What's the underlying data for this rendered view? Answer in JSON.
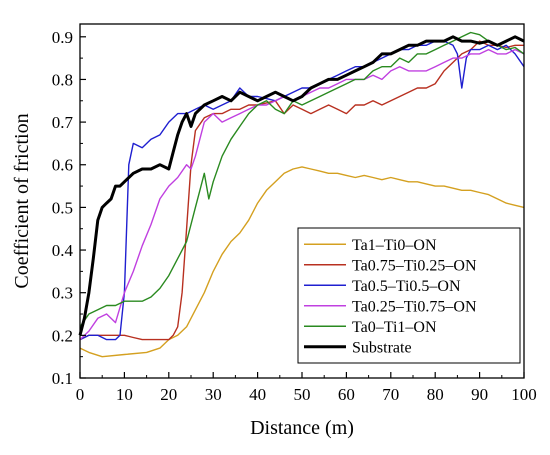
{
  "chart_data": {
    "type": "line",
    "title": "",
    "xlabel": "Distance (m)",
    "ylabel": "Coefficient of friction",
    "xlim": [
      0,
      100
    ],
    "ylim": [
      0.1,
      0.93
    ],
    "xticks": [
      0,
      10,
      20,
      30,
      40,
      50,
      60,
      70,
      80,
      90,
      100
    ],
    "yticks": [
      0.1,
      0.2,
      0.3,
      0.4,
      0.5,
      0.6,
      0.7,
      0.8,
      0.9
    ],
    "grid": false,
    "legend_position": "bottom-right",
    "series": [
      {
        "name": "Ta1–Ti0–ON",
        "color": "#d4a020",
        "width": 1.4,
        "x": [
          0,
          2,
          5,
          10,
          15,
          18,
          20,
          22,
          24,
          26,
          28,
          30,
          32,
          34,
          36,
          38,
          40,
          42,
          44,
          46,
          48,
          50,
          52,
          54,
          56,
          58,
          60,
          62,
          64,
          66,
          68,
          70,
          72,
          74,
          76,
          78,
          80,
          82,
          84,
          86,
          88,
          90,
          92,
          94,
          96,
          98,
          100
        ],
        "y": [
          0.17,
          0.16,
          0.15,
          0.155,
          0.16,
          0.17,
          0.19,
          0.2,
          0.22,
          0.26,
          0.3,
          0.35,
          0.39,
          0.42,
          0.44,
          0.47,
          0.51,
          0.54,
          0.56,
          0.58,
          0.59,
          0.595,
          0.59,
          0.585,
          0.58,
          0.58,
          0.575,
          0.57,
          0.575,
          0.57,
          0.565,
          0.57,
          0.565,
          0.56,
          0.56,
          0.555,
          0.55,
          0.55,
          0.545,
          0.54,
          0.54,
          0.535,
          0.53,
          0.52,
          0.51,
          0.505,
          0.5
        ]
      },
      {
        "name": "Ta0.75–Ti0.25–ON",
        "color": "#b83020",
        "width": 1.4,
        "x": [
          0,
          2,
          4,
          6,
          8,
          10,
          12,
          14,
          16,
          18,
          20,
          21,
          22,
          23,
          24,
          25,
          26,
          28,
          30,
          32,
          34,
          36,
          38,
          40,
          42,
          44,
          46,
          48,
          50,
          52,
          54,
          56,
          58,
          60,
          62,
          64,
          66,
          68,
          70,
          72,
          74,
          76,
          78,
          80,
          82,
          84,
          86,
          88,
          90,
          92,
          94,
          96,
          98,
          100
        ],
        "y": [
          0.19,
          0.2,
          0.2,
          0.2,
          0.2,
          0.2,
          0.195,
          0.19,
          0.19,
          0.19,
          0.19,
          0.2,
          0.22,
          0.3,
          0.45,
          0.6,
          0.68,
          0.71,
          0.72,
          0.72,
          0.73,
          0.73,
          0.74,
          0.74,
          0.745,
          0.75,
          0.72,
          0.74,
          0.73,
          0.72,
          0.73,
          0.74,
          0.73,
          0.72,
          0.74,
          0.74,
          0.75,
          0.74,
          0.75,
          0.76,
          0.77,
          0.78,
          0.78,
          0.79,
          0.82,
          0.84,
          0.86,
          0.87,
          0.89,
          0.88,
          0.88,
          0.875,
          0.88,
          0.88
        ]
      },
      {
        "name": "Ta0.5–Ti0.5–ON",
        "color": "#1f1fd0",
        "width": 1.4,
        "x": [
          0,
          2,
          4,
          6,
          8,
          9,
          10,
          11,
          12,
          14,
          16,
          18,
          20,
          22,
          24,
          26,
          28,
          30,
          32,
          34,
          36,
          38,
          40,
          42,
          44,
          46,
          48,
          50,
          52,
          54,
          56,
          58,
          60,
          62,
          64,
          66,
          68,
          70,
          72,
          74,
          76,
          78,
          80,
          82,
          84,
          85,
          86,
          87,
          88,
          90,
          92,
          94,
          96,
          98,
          100
        ],
        "y": [
          0.19,
          0.2,
          0.2,
          0.19,
          0.19,
          0.2,
          0.3,
          0.6,
          0.65,
          0.64,
          0.66,
          0.67,
          0.7,
          0.72,
          0.72,
          0.73,
          0.74,
          0.73,
          0.74,
          0.75,
          0.78,
          0.76,
          0.76,
          0.755,
          0.75,
          0.76,
          0.77,
          0.78,
          0.78,
          0.79,
          0.8,
          0.81,
          0.82,
          0.83,
          0.83,
          0.84,
          0.85,
          0.86,
          0.87,
          0.87,
          0.88,
          0.88,
          0.89,
          0.89,
          0.88,
          0.86,
          0.78,
          0.85,
          0.87,
          0.87,
          0.88,
          0.87,
          0.88,
          0.86,
          0.83
        ]
      },
      {
        "name": "Ta0.25–Ti0.75–ON",
        "color": "#c040e0",
        "width": 1.4,
        "x": [
          0,
          2,
          4,
          6,
          8,
          10,
          12,
          14,
          16,
          18,
          20,
          22,
          24,
          25,
          26,
          28,
          30,
          32,
          34,
          36,
          38,
          40,
          42,
          44,
          46,
          48,
          50,
          52,
          54,
          56,
          58,
          60,
          62,
          64,
          66,
          68,
          70,
          72,
          74,
          76,
          78,
          80,
          82,
          84,
          86,
          88,
          90,
          92,
          94,
          96,
          98,
          100
        ],
        "y": [
          0.19,
          0.21,
          0.24,
          0.25,
          0.23,
          0.3,
          0.35,
          0.41,
          0.46,
          0.52,
          0.55,
          0.57,
          0.6,
          0.59,
          0.62,
          0.7,
          0.72,
          0.7,
          0.71,
          0.72,
          0.73,
          0.74,
          0.74,
          0.75,
          0.76,
          0.75,
          0.76,
          0.77,
          0.78,
          0.78,
          0.79,
          0.8,
          0.8,
          0.8,
          0.81,
          0.8,
          0.82,
          0.83,
          0.82,
          0.82,
          0.82,
          0.83,
          0.84,
          0.85,
          0.85,
          0.86,
          0.86,
          0.87,
          0.86,
          0.86,
          0.87,
          0.86
        ]
      },
      {
        "name": "Ta0–Ti1–ON",
        "color": "#2a8a20",
        "width": 1.4,
        "x": [
          0,
          2,
          4,
          6,
          8,
          10,
          12,
          14,
          16,
          18,
          20,
          22,
          24,
          26,
          27,
          28,
          29,
          30,
          32,
          34,
          36,
          38,
          40,
          42,
          44,
          46,
          48,
          50,
          52,
          54,
          56,
          58,
          60,
          62,
          64,
          66,
          68,
          70,
          72,
          74,
          76,
          78,
          80,
          82,
          84,
          86,
          88,
          90,
          92,
          94,
          96,
          98,
          100
        ],
        "y": [
          0.22,
          0.25,
          0.26,
          0.27,
          0.27,
          0.28,
          0.28,
          0.28,
          0.29,
          0.31,
          0.34,
          0.38,
          0.42,
          0.5,
          0.54,
          0.58,
          0.52,
          0.56,
          0.62,
          0.66,
          0.69,
          0.72,
          0.74,
          0.75,
          0.73,
          0.72,
          0.75,
          0.74,
          0.75,
          0.76,
          0.77,
          0.78,
          0.79,
          0.8,
          0.8,
          0.82,
          0.83,
          0.83,
          0.85,
          0.84,
          0.86,
          0.86,
          0.87,
          0.88,
          0.89,
          0.9,
          0.91,
          0.905,
          0.89,
          0.88,
          0.87,
          0.875,
          0.86
        ]
      },
      {
        "name": "Substrate",
        "color": "#000000",
        "width": 3,
        "x": [
          0,
          1,
          2,
          3,
          4,
          5,
          6,
          7,
          8,
          9,
          10,
          12,
          14,
          16,
          18,
          20,
          21,
          22,
          23,
          24,
          25,
          26,
          28,
          30,
          32,
          34,
          36,
          38,
          40,
          42,
          44,
          46,
          48,
          50,
          52,
          54,
          56,
          58,
          60,
          62,
          64,
          66,
          68,
          70,
          72,
          74,
          76,
          78,
          80,
          82,
          84,
          86,
          88,
          90,
          92,
          94,
          96,
          98,
          100
        ],
        "y": [
          0.2,
          0.24,
          0.3,
          0.38,
          0.47,
          0.5,
          0.51,
          0.52,
          0.55,
          0.55,
          0.56,
          0.58,
          0.59,
          0.59,
          0.6,
          0.59,
          0.63,
          0.67,
          0.7,
          0.72,
          0.69,
          0.72,
          0.74,
          0.75,
          0.76,
          0.75,
          0.77,
          0.76,
          0.75,
          0.76,
          0.77,
          0.76,
          0.75,
          0.76,
          0.78,
          0.79,
          0.8,
          0.8,
          0.81,
          0.82,
          0.83,
          0.84,
          0.86,
          0.86,
          0.87,
          0.88,
          0.88,
          0.89,
          0.89,
          0.89,
          0.9,
          0.89,
          0.89,
          0.885,
          0.89,
          0.88,
          0.89,
          0.9,
          0.89
        ]
      }
    ]
  }
}
